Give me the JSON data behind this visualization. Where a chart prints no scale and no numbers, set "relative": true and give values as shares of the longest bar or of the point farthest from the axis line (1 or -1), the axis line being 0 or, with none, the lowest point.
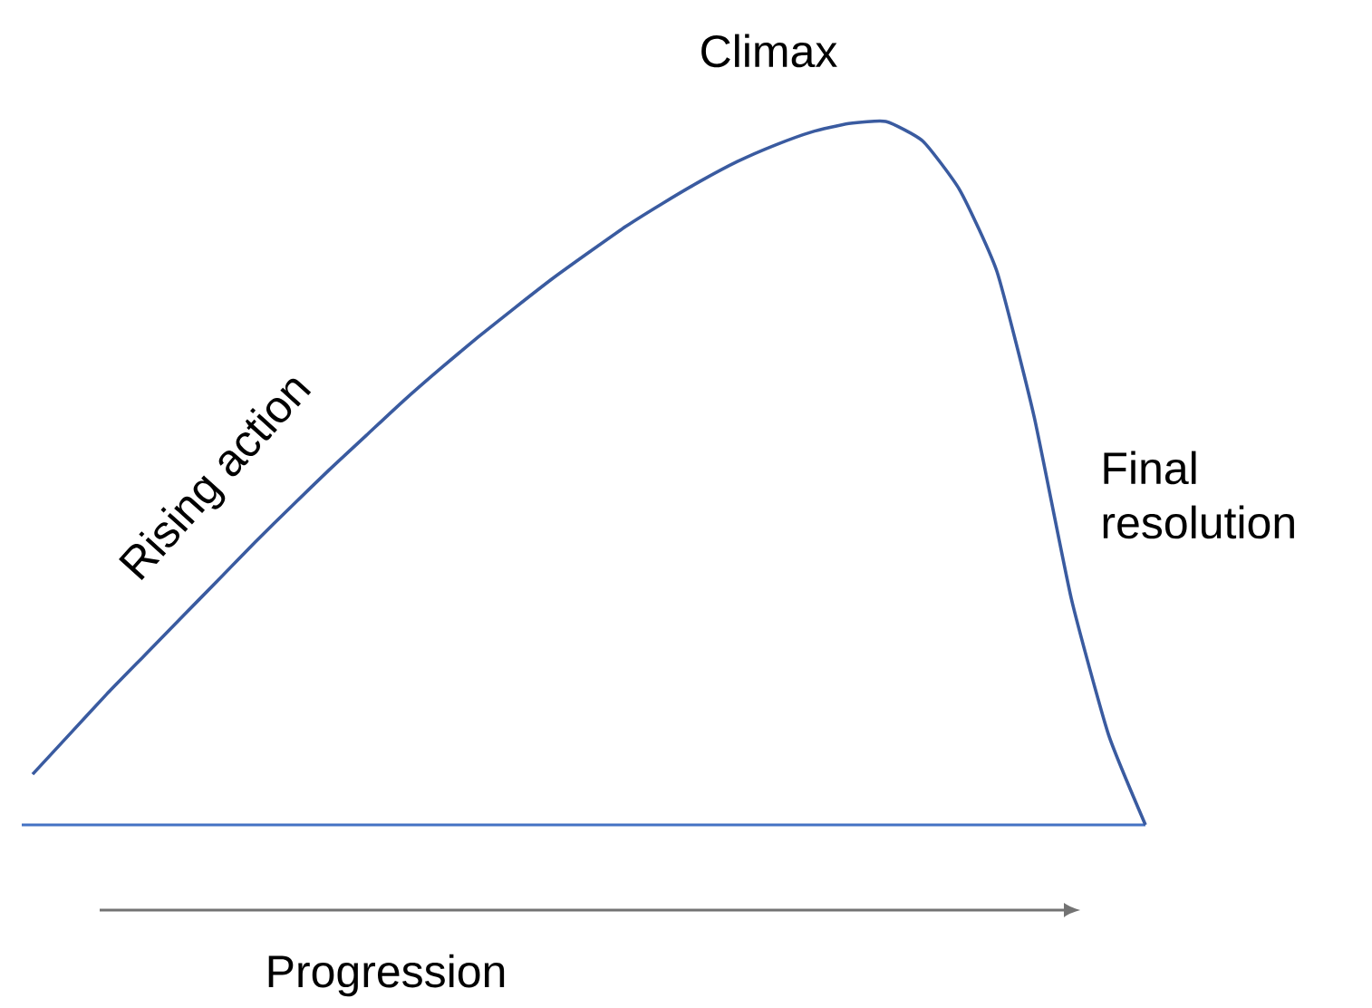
{
  "chart_data": {
    "type": "line",
    "relative": true,
    "xlabel": "Progression",
    "annotations": [
      "Climax",
      "Rising action",
      "Final resolution"
    ],
    "categories": [
      null,
      null,
      null,
      null,
      null,
      null,
      null,
      null,
      null,
      null,
      null,
      null,
      null,
      null,
      null,
      null,
      null,
      null,
      null,
      null,
      null,
      null,
      null,
      null,
      null,
      null,
      null,
      null,
      null,
      null,
      null
    ],
    "series": [
      {
        "color": "#3a5ba0",
        "values": [
          0.072,
          0.129,
          0.186,
          0.24,
          0.294,
          0.348,
          0.402,
          0.454,
          0.505,
          0.554,
          0.603,
          0.649,
          0.693,
          0.735,
          0.776,
          0.814,
          0.851,
          0.884,
          0.915,
          0.943,
          0.966,
          0.985,
          0.997,
          1.0,
          0.972,
          0.902,
          0.786,
          0.58,
          0.322,
          0.129,
          0.0
        ]
      }
    ]
  }
}
